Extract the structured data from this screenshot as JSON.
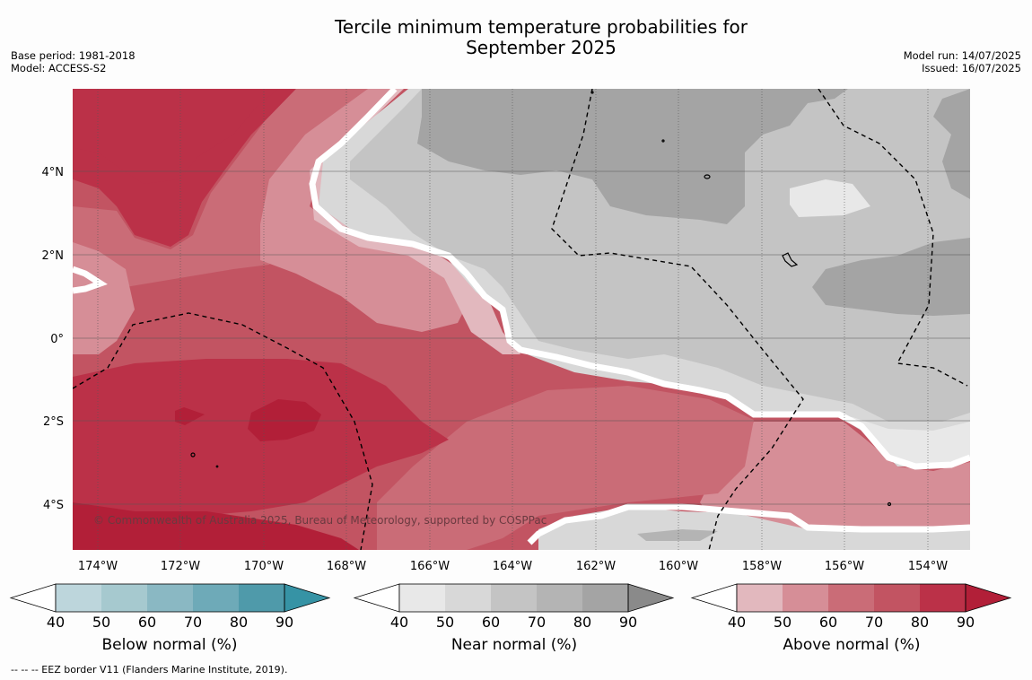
{
  "title": {
    "line1": "Tercile minimum temperature probabilities for",
    "line2": "September 2025"
  },
  "meta_left": {
    "base_period": "Base period: 1981-2018",
    "model": "Model: ACCESS-S2"
  },
  "meta_right": {
    "model_run": "Model run: 14/07/2025",
    "issued": "Issued: 16/07/2025"
  },
  "copyright": "© Commonwealth of Australia 2025, Bureau of Meteorology, supported by COSPPac",
  "map_axes": {
    "lon_ticks": [
      "174°W",
      "172°W",
      "170°W",
      "168°W",
      "166°W",
      "164°W",
      "162°W",
      "160°W",
      "158°W",
      "156°W",
      "154°W"
    ],
    "lat_ticks": [
      "4°N",
      "2°N",
      "0°",
      "2°S",
      "4°S"
    ]
  },
  "colorbars": [
    {
      "label": "Below normal (%)",
      "ticks": [
        "40",
        "50",
        "60",
        "70",
        "80",
        "90"
      ],
      "colors": [
        "#bdd6dc",
        "#a6c9cf",
        "#8ab8c3",
        "#6eaab8",
        "#4f9aaa",
        "#3693a5"
      ]
    },
    {
      "label": "Near normal (%)",
      "ticks": [
        "40",
        "50",
        "60",
        "70",
        "80",
        "90"
      ],
      "colors": [
        "#e8e8e8",
        "#d8d8d8",
        "#c4c4c4",
        "#b4b4b4",
        "#a4a4a4",
        "#8a8a8a"
      ]
    },
    {
      "label": "Above normal (%)",
      "ticks": [
        "40",
        "50",
        "60",
        "70",
        "80",
        "90"
      ],
      "colors": [
        "#e2b8be",
        "#d68e97",
        "#ca6c77",
        "#c25462",
        "#bb3148",
        "#b21f38"
      ]
    }
  ],
  "footnote": "--  --  -- EEZ border V11 (Flanders Marine Institute, 2019)."
}
